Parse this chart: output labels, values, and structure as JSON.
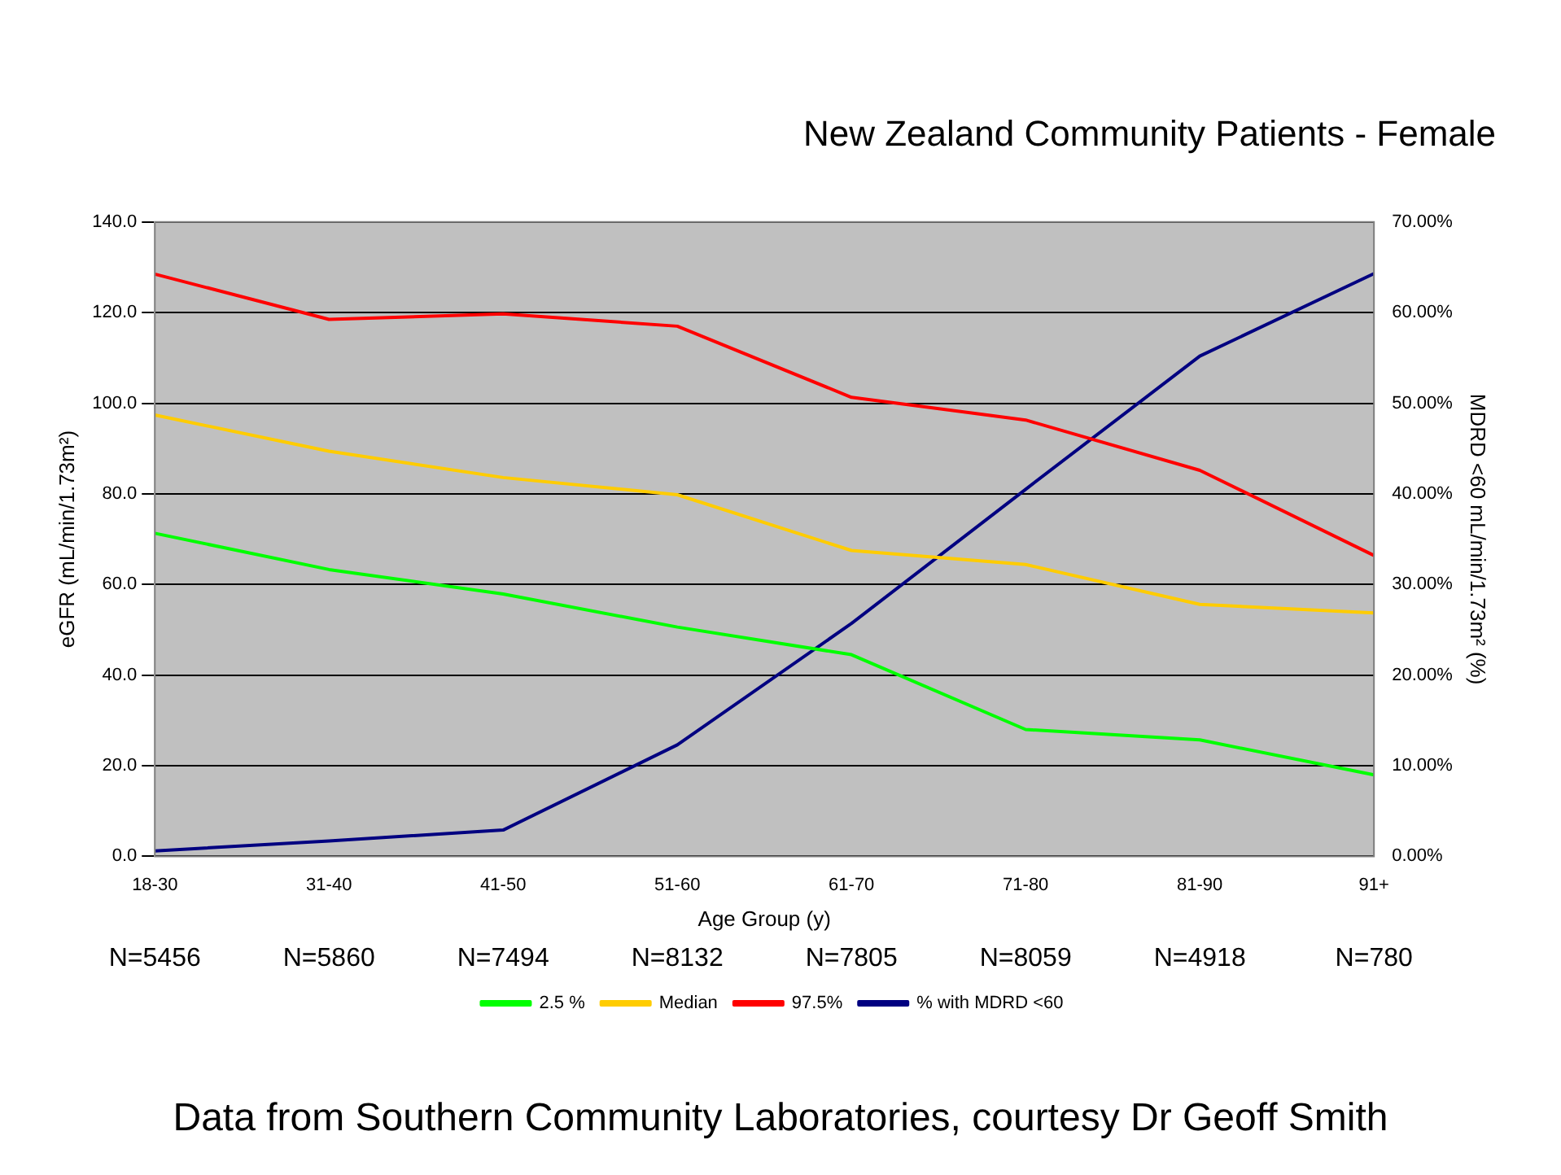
{
  "chart_data": {
    "type": "line",
    "title": "New Zealand Community Patients - Female",
    "xlabel": "Age Group (y)",
    "ylabel": "eGFR (mL/min/1.73m²)",
    "y2label": "MDRD <60 mL/min/1.73m² (%)",
    "categories": [
      "18-30",
      "31-40",
      "41-50",
      "51-60",
      "61-70",
      "71-80",
      "81-90",
      "91+"
    ],
    "series": [
      {
        "name": "2.5 %",
        "color": "#00ff00",
        "values": [
          71.3,
          63.3,
          57.9,
          50.6,
          44.5,
          28,
          25.7,
          18
        ]
      },
      {
        "name": "Median",
        "color": "#ffcc00",
        "values": [
          97.4,
          89.4,
          83.6,
          79.8,
          67.5,
          64.4,
          55.6,
          53.7
        ]
      },
      {
        "name": "97.5%",
        "color": "#ff0000",
        "values": [
          128.5,
          118.5,
          119.7,
          117,
          101.3,
          96.3,
          85.2,
          66.4
        ]
      },
      {
        "name": "% with MDRD <60",
        "color": "#000080",
        "axis": "y2",
        "values": [
          0.6,
          1.7,
          2.9,
          12.3,
          25.7,
          40.5,
          55.2,
          64.3
        ]
      }
    ],
    "ylim": [
      0,
      140
    ],
    "yticks": [
      {
        "value": 0,
        "label": "0.0"
      },
      {
        "value": 20,
        "label": "20.0"
      },
      {
        "value": 40,
        "label": "40.0"
      },
      {
        "value": 60,
        "label": "60.0"
      },
      {
        "value": 80,
        "label": "80.0"
      },
      {
        "value": 100,
        "label": "100.0"
      },
      {
        "value": 120,
        "label": "120.0"
      },
      {
        "value": 140,
        "label": "140.0"
      }
    ],
    "y2lim": [
      0,
      70
    ],
    "y2ticks": [
      {
        "value": 0,
        "label": "0.00%"
      },
      {
        "value": 10,
        "label": "10.00%"
      },
      {
        "value": 20,
        "label": "20.00%"
      },
      {
        "value": 30,
        "label": "30.00%"
      },
      {
        "value": 40,
        "label": "40.00%"
      },
      {
        "value": 50,
        "label": "50.00%"
      },
      {
        "value": 60,
        "label": "60.00%"
      },
      {
        "value": 70,
        "label": "70.00%"
      }
    ],
    "grid": "y",
    "legend": "bottom",
    "marker": "none",
    "line_style": "solid",
    "annotations": [
      "N=5456",
      "N=5860",
      "N=7494",
      "N=8132",
      "N=7805",
      "N=8059",
      "N=4918",
      "N=780",
      "Data from Southern Community Laboratories, courtesy Dr Geoff Smith"
    ]
  }
}
